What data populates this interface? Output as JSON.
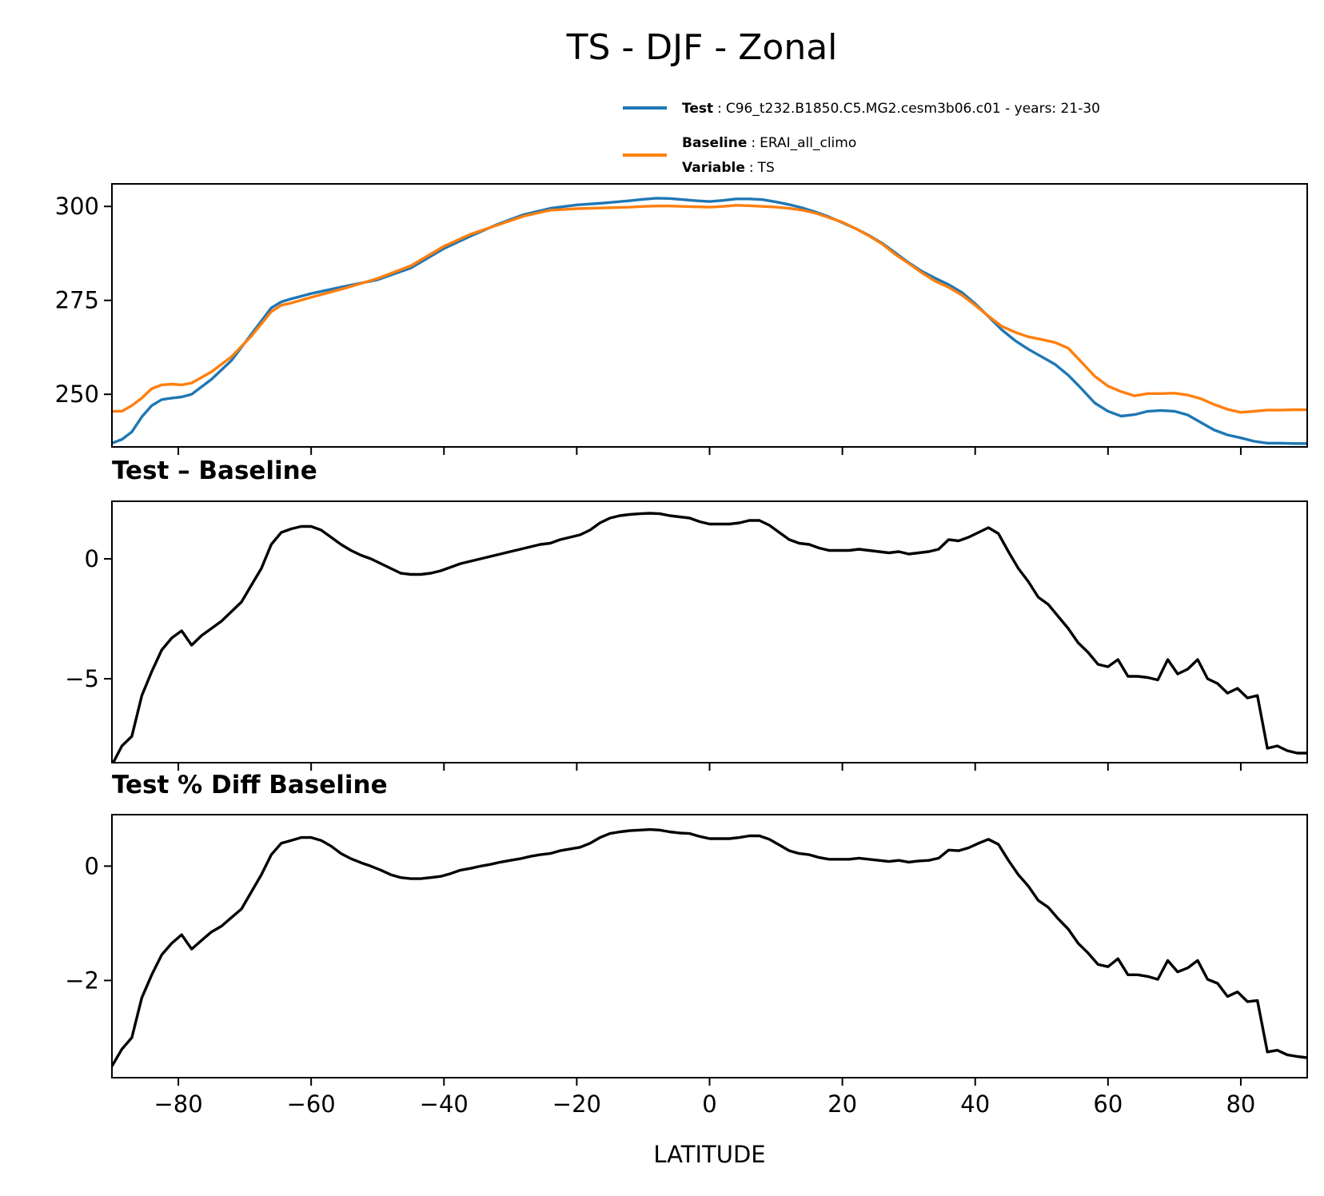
{
  "figure": {
    "title": "TS - DJF - Zonal"
  },
  "legend": {
    "entries": [
      {
        "key": "Test",
        "sep": ":",
        "value": "C96_t232.B1850.C5.MG2.cesm3b06.c01 - years: 21-30",
        "color": "#1f77b4"
      },
      {
        "key": "Baseline",
        "sep": ":",
        "value": "ERAI_all_climo",
        "color": "#ff7f0e"
      },
      {
        "key": "Variable",
        "sep": ":",
        "value": "TS"
      }
    ]
  },
  "chart_data": [
    {
      "type": "line",
      "title": "",
      "xlabel": "",
      "ylabel": "",
      "xlim": [
        -90,
        90
      ],
      "ylim": [
        236,
        306
      ],
      "yticks": [
        250,
        275,
        300
      ],
      "ytick_labels": [
        "250",
        "275",
        "300"
      ],
      "xticks": [
        -80,
        -60,
        -40,
        -20,
        0,
        20,
        40,
        60,
        80
      ],
      "xtick_labels": [],
      "series": [
        {
          "name": "Test",
          "color": "#1f77b4",
          "x": [
            -90,
            -88.5,
            -87,
            -85.5,
            -84,
            -82.5,
            -81,
            -79.5,
            -78,
            -75,
            -72,
            -69,
            -66,
            -64.5,
            -63,
            -60,
            -55,
            -50,
            -45,
            -40,
            -36,
            -32,
            -28,
            -24,
            -20,
            -16,
            -12,
            -10,
            -8,
            -6,
            -4,
            -2,
            0,
            2,
            4,
            6,
            8,
            10,
            12,
            14,
            16,
            18,
            20,
            22,
            24,
            26,
            28,
            30,
            32,
            34,
            36,
            38,
            40,
            42,
            44,
            46,
            48,
            50,
            52,
            54,
            56,
            58,
            60,
            62,
            64,
            66,
            68,
            70,
            72,
            74,
            76,
            78,
            80,
            82,
            84,
            86,
            88,
            90
          ],
          "values": [
            237,
            238,
            240,
            244,
            247,
            248.6,
            249,
            249.3,
            250,
            254,
            259,
            266,
            273,
            274.6,
            275.4,
            276.8,
            278.7,
            280.5,
            283.6,
            288.8,
            292.1,
            295.2,
            297.8,
            299.5,
            300.4,
            300.9,
            301.5,
            301.9,
            302.2,
            302.1,
            301.8,
            301.5,
            301.3,
            301.6,
            302,
            302,
            301.8,
            301.2,
            300.5,
            299.6,
            298.5,
            297.2,
            295.7,
            294.1,
            292.3,
            290.2,
            287.6,
            285,
            282.7,
            280.9,
            279.2,
            277.1,
            274.1,
            270.7,
            267.2,
            264.3,
            262,
            260,
            258,
            255.1,
            251.5,
            247.7,
            245.5,
            244.2,
            244.6,
            245.5,
            245.7,
            245.5,
            244.5,
            242.5,
            240.5,
            239.2,
            238.4,
            237.5,
            237,
            237,
            236.9,
            236.9
          ]
        },
        {
          "name": "Baseline",
          "color": "#ff7f0e",
          "x": [
            -90,
            -88.5,
            -87,
            -85.5,
            -84,
            -82.5,
            -81,
            -79.5,
            -78,
            -75,
            -72,
            -69,
            -66,
            -64.5,
            -63,
            -60,
            -55,
            -50,
            -45,
            -40,
            -36,
            -32,
            -28,
            -24,
            -20,
            -16,
            -12,
            -10,
            -8,
            -6,
            -4,
            -2,
            0,
            2,
            4,
            6,
            8,
            10,
            12,
            14,
            16,
            18,
            20,
            22,
            24,
            26,
            28,
            30,
            32,
            34,
            36,
            38,
            40,
            42,
            44,
            46,
            48,
            50,
            52,
            54,
            56,
            58,
            60,
            62,
            64,
            66,
            68,
            70,
            72,
            74,
            76,
            78,
            80,
            82,
            84,
            86,
            88,
            90
          ],
          "values": [
            245.5,
            245.5,
            247,
            249,
            251.5,
            252.5,
            252.7,
            252.5,
            253,
            256,
            260,
            265.5,
            272,
            273.7,
            274.3,
            275.8,
            278.2,
            280.8,
            284.2,
            289.4,
            292.6,
            295,
            297.4,
            299,
            299.4,
            299.6,
            299.8,
            300,
            300.1,
            300.1,
            300,
            299.9,
            299.8,
            300,
            300.3,
            300.2,
            300,
            299.8,
            299.5,
            299,
            298.2,
            297,
            295.8,
            294.1,
            292.2,
            290,
            287.2,
            284.8,
            282.3,
            280.1,
            278.5,
            276.4,
            273.7,
            270.8,
            268.1,
            266.5,
            265.3,
            264.6,
            263.8,
            262.3,
            258.6,
            254.8,
            252.2,
            250.7,
            249.6,
            250.2,
            250.2,
            250.3,
            249.8,
            248.8,
            247.3,
            246,
            245.2,
            245.5,
            245.8,
            245.8,
            245.9,
            245.9
          ]
        }
      ]
    },
    {
      "type": "line",
      "title": "Test – Baseline",
      "xlabel": "",
      "ylabel": "",
      "xlim": [
        -90,
        90
      ],
      "ylim": [
        -8.5,
        2.4
      ],
      "yticks": [
        -5,
        0
      ],
      "ytick_labels": [
        "−5",
        "0"
      ],
      "xticks": [
        -80,
        -60,
        -40,
        -20,
        0,
        20,
        40,
        60,
        80
      ],
      "xtick_labels": [],
      "series": [
        {
          "name": "",
          "color": "#000000",
          "x": [
            -90,
            -88.5,
            -87,
            -85.5,
            -84,
            -82.5,
            -81,
            -79.5,
            -78,
            -76.5,
            -75,
            -73.5,
            -72,
            -70.5,
            -69,
            -67.5,
            -66,
            -64.5,
            -63,
            -61.5,
            -60,
            -58.5,
            -57,
            -55.5,
            -54,
            -52.5,
            -51,
            -49.5,
            -48,
            -46.5,
            -45,
            -43.5,
            -42,
            -40.5,
            -39,
            -37.5,
            -36,
            -34.5,
            -33,
            -31.5,
            -30,
            -28.5,
            -27,
            -25.5,
            -24,
            -22.5,
            -21,
            -19.5,
            -18,
            -16.5,
            -15,
            -13.5,
            -12,
            -10.5,
            -9,
            -7.5,
            -6,
            -4.5,
            -3,
            -1.5,
            0,
            1.5,
            3,
            4.5,
            6,
            7.5,
            9,
            10.5,
            12,
            13.5,
            15,
            16.5,
            18,
            19.5,
            21,
            22.5,
            24,
            25.5,
            27,
            28.5,
            30,
            31.5,
            33,
            34.5,
            36,
            37.5,
            39,
            40.5,
            42,
            43.5,
            45,
            46.5,
            48,
            49.5,
            51,
            52.5,
            54,
            55.5,
            57,
            58.5,
            60,
            61.5,
            63,
            64.5,
            66,
            67.5,
            69,
            70.5,
            72,
            73.5,
            75,
            76.5,
            78,
            79.5,
            81,
            82.5,
            84,
            85.5,
            87,
            88.5,
            90
          ],
          "values": [
            -8.6,
            -7.8,
            -7.4,
            -5.7,
            -4.7,
            -3.8,
            -3.3,
            -3,
            -3.6,
            -3.2,
            -2.9,
            -2.6,
            -2.2,
            -1.8,
            -1.1,
            -0.4,
            0.6,
            1.1,
            1.25,
            1.35,
            1.35,
            1.2,
            0.9,
            0.6,
            0.35,
            0.15,
            0,
            -0.2,
            -0.4,
            -0.6,
            -0.65,
            -0.65,
            -0.6,
            -0.5,
            -0.35,
            -0.2,
            -0.1,
            0,
            0.1,
            0.2,
            0.3,
            0.4,
            0.5,
            0.6,
            0.65,
            0.8,
            0.9,
            1,
            1.2,
            1.5,
            1.7,
            1.8,
            1.85,
            1.88,
            1.9,
            1.88,
            1.8,
            1.75,
            1.7,
            1.55,
            1.45,
            1.45,
            1.45,
            1.5,
            1.6,
            1.6,
            1.4,
            1.1,
            0.8,
            0.65,
            0.6,
            0.45,
            0.35,
            0.35,
            0.35,
            0.4,
            0.35,
            0.3,
            0.25,
            0.3,
            0.2,
            0.25,
            0.3,
            0.4,
            0.8,
            0.75,
            0.9,
            1.1,
            1.3,
            1.05,
            0.3,
            -0.4,
            -0.95,
            -1.6,
            -1.9,
            -2.4,
            -2.9,
            -3.5,
            -3.9,
            -4.4,
            -4.5,
            -4.2,
            -4.9,
            -4.9,
            -4.95,
            -5.05,
            -4.2,
            -4.8,
            -4.6,
            -4.2,
            -5,
            -5.2,
            -5.6,
            -5.4,
            -5.8,
            -5.7,
            -7.9,
            -7.8,
            -8,
            -8.1,
            -8.1
          ]
        }
      ]
    },
    {
      "type": "line",
      "title": "Test % Diff Baseline",
      "xlabel": "LATITUDE",
      "ylabel": "",
      "xlim": [
        -90,
        90
      ],
      "ylim": [
        -3.7,
        0.9
      ],
      "yticks": [
        -2,
        0
      ],
      "ytick_labels": [
        "−2",
        "0"
      ],
      "xticks": [
        -80,
        -60,
        -40,
        -20,
        0,
        20,
        40,
        60,
        80
      ],
      "xtick_labels": [
        "−80",
        "−60",
        "−40",
        "−20",
        "0",
        "20",
        "40",
        "60",
        "80"
      ],
      "series": [
        {
          "name": "",
          "color": "#000000",
          "x": [
            -90,
            -88.5,
            -87,
            -85.5,
            -84,
            -82.5,
            -81,
            -79.5,
            -78,
            -76.5,
            -75,
            -73.5,
            -72,
            -70.5,
            -69,
            -67.5,
            -66,
            -64.5,
            -63,
            -61.5,
            -60,
            -58.5,
            -57,
            -55.5,
            -54,
            -52.5,
            -51,
            -49.5,
            -48,
            -46.5,
            -45,
            -43.5,
            -42,
            -40.5,
            -39,
            -37.5,
            -36,
            -34.5,
            -33,
            -31.5,
            -30,
            -28.5,
            -27,
            -25.5,
            -24,
            -22.5,
            -21,
            -19.5,
            -18,
            -16.5,
            -15,
            -13.5,
            -12,
            -10.5,
            -9,
            -7.5,
            -6,
            -4.5,
            -3,
            -1.5,
            0,
            1.5,
            3,
            4.5,
            6,
            7.5,
            9,
            10.5,
            12,
            13.5,
            15,
            16.5,
            18,
            19.5,
            21,
            22.5,
            24,
            25.5,
            27,
            28.5,
            30,
            31.5,
            33,
            34.5,
            36,
            37.5,
            39,
            40.5,
            42,
            43.5,
            45,
            46.5,
            48,
            49.5,
            51,
            52.5,
            54,
            55.5,
            57,
            58.5,
            60,
            61.5,
            63,
            64.5,
            66,
            67.5,
            69,
            70.5,
            72,
            73.5,
            75,
            76.5,
            78,
            79.5,
            81,
            82.5,
            84,
            85.5,
            87,
            88.5,
            90
          ],
          "values": [
            -3.5,
            -3.2,
            -3,
            -2.3,
            -1.9,
            -1.55,
            -1.35,
            -1.2,
            -1.45,
            -1.3,
            -1.15,
            -1.05,
            -0.9,
            -0.75,
            -0.45,
            -0.15,
            0.2,
            0.4,
            0.45,
            0.5,
            0.5,
            0.45,
            0.35,
            0.22,
            0.13,
            0.06,
            0,
            -0.07,
            -0.15,
            -0.2,
            -0.22,
            -0.22,
            -0.2,
            -0.18,
            -0.13,
            -0.07,
            -0.04,
            0,
            0.03,
            0.07,
            0.1,
            0.13,
            0.17,
            0.2,
            0.22,
            0.27,
            0.3,
            0.33,
            0.4,
            0.5,
            0.57,
            0.6,
            0.62,
            0.63,
            0.64,
            0.63,
            0.6,
            0.58,
            0.57,
            0.52,
            0.48,
            0.48,
            0.48,
            0.5,
            0.53,
            0.53,
            0.47,
            0.37,
            0.27,
            0.22,
            0.2,
            0.15,
            0.12,
            0.12,
            0.12,
            0.14,
            0.12,
            0.1,
            0.08,
            0.1,
            0.07,
            0.09,
            0.1,
            0.14,
            0.28,
            0.27,
            0.32,
            0.4,
            0.47,
            0.38,
            0.1,
            -0.15,
            -0.35,
            -0.6,
            -0.72,
            -0.92,
            -1.1,
            -1.35,
            -1.52,
            -1.72,
            -1.76,
            -1.62,
            -1.9,
            -1.9,
            -1.93,
            -1.98,
            -1.65,
            -1.85,
            -1.78,
            -1.65,
            -1.98,
            -2.05,
            -2.28,
            -2.2,
            -2.37,
            -2.35,
            -3.25,
            -3.22,
            -3.3,
            -3.33,
            -3.35
          ]
        }
      ]
    }
  ]
}
